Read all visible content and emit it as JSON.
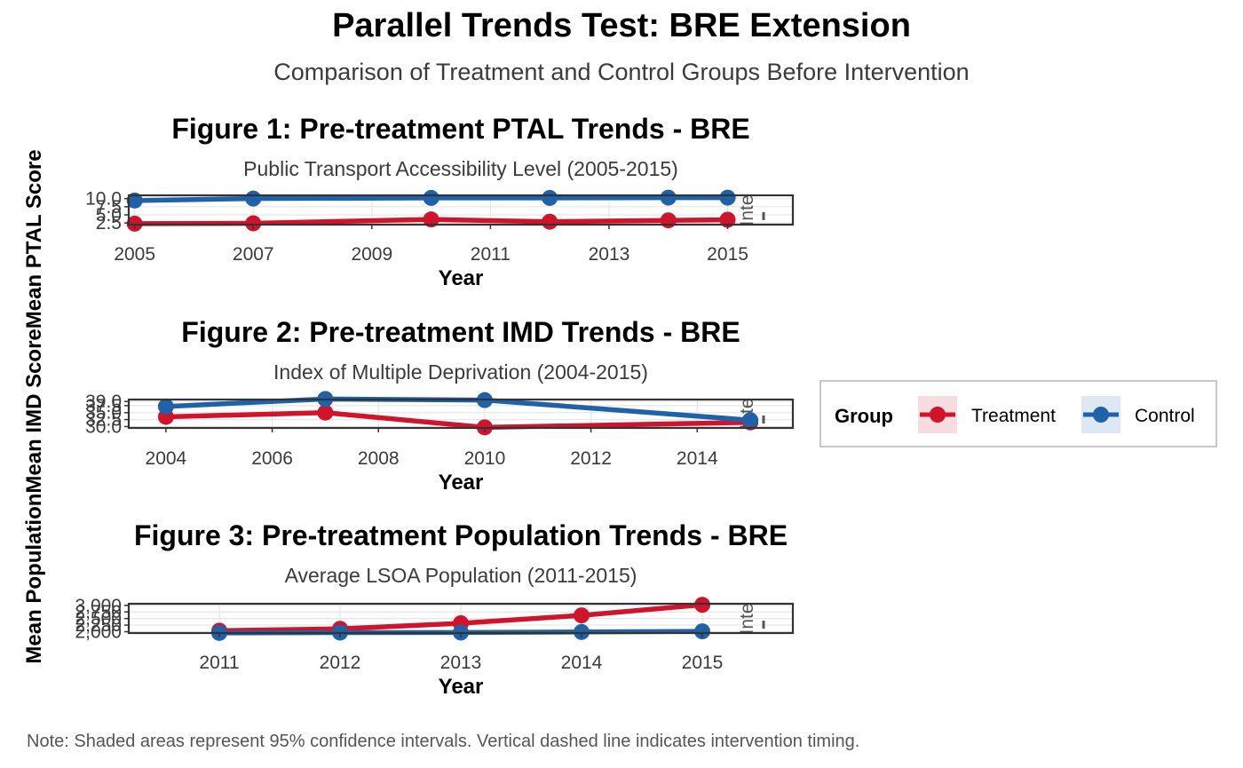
{
  "title": "Parallel Trends Test: BRE Extension",
  "subtitle": "Comparison of Treatment and Control Groups Before Intervention",
  "caption": "Note: Shaded areas represent 95% confidence intervals. Vertical dashed line indicates intervention timing.",
  "y_axis_label": "Mean PopulationMean IMD ScoreMean PTAL Score",
  "legend": {
    "title": "Group",
    "entries": [
      {
        "label": "Treatment",
        "color": "#D0142B"
      },
      {
        "label": "Control",
        "color": "#1F62A8"
      }
    ]
  },
  "chart_data": [
    {
      "type": "line",
      "title": "Figure 1: Pre-treatment PTAL Trends - BRE",
      "subtitle": "Public Transport Accessibility Level (2005-2015)",
      "xlabel": "Year",
      "ylabel": "Mean PTAL Score",
      "intervention_label": "Inte",
      "x": [
        2005,
        2007,
        2010,
        2012,
        2014,
        2015
      ],
      "xlim": [
        2004.9,
        2016.1
      ],
      "xticks": [
        2005,
        2007,
        2009,
        2011,
        2013,
        2015
      ],
      "xtick_labels": [
        "2005",
        "2007",
        "2009",
        "2011",
        "2013",
        "2015"
      ],
      "ylim": [
        2.0,
        11.0
      ],
      "yticks": [
        2.5,
        5.0,
        7.5,
        10.0
      ],
      "ytick_labels": [
        "2.5",
        "5.0",
        "7.5",
        "10.0"
      ],
      "series": [
        {
          "name": "Treatment",
          "values": [
            2.3,
            2.4,
            3.6,
            2.9,
            3.3,
            3.5
          ]
        },
        {
          "name": "Control",
          "values": [
            9.4,
            10.0,
            10.2,
            10.2,
            10.3,
            10.3
          ]
        }
      ]
    },
    {
      "type": "line",
      "title": "Figure 2: Pre-treatment IMD Trends - BRE",
      "subtitle": "Index of Multiple Deprivation (2004-2015)",
      "xlabel": "Year",
      "ylabel": "Mean IMD Score",
      "intervention_label": "Inte",
      "x": [
        2004,
        2007,
        2010,
        2015
      ],
      "xlim": [
        2003.3,
        2015.8
      ],
      "xticks": [
        2004,
        2006,
        2008,
        2010,
        2012,
        2014
      ],
      "xtick_labels": [
        "2004",
        "2006",
        "2008",
        "2010",
        "2012",
        "2014"
      ],
      "ylim": [
        29.5,
        39.7
      ],
      "yticks": [
        30.0,
        32.5,
        35.0,
        37.5,
        39.0
      ],
      "ytick_labels": [
        "30.0",
        "32.5",
        "35.0",
        "37.5",
        "39.0"
      ],
      "series": [
        {
          "name": "Treatment",
          "values": [
            33.5,
            35.0,
            29.7,
            31.5
          ]
        },
        {
          "name": "Control",
          "values": [
            37.2,
            39.9,
            39.5,
            32.3
          ]
        }
      ]
    },
    {
      "type": "line",
      "title": "Figure 3: Pre-treatment Population Trends - BRE",
      "subtitle": "Average LSOA Population (2011-2015)",
      "xlabel": "Year",
      "ylabel": "Mean Population",
      "intervention_label": "Inte",
      "x": [
        2011,
        2012,
        2013,
        2014,
        2015
      ],
      "xlim": [
        2010.25,
        2015.75
      ],
      "xticks": [
        2011,
        2012,
        2013,
        2014,
        2015
      ],
      "xtick_labels": [
        "2011",
        "2012",
        "2013",
        "2014",
        "2015"
      ],
      "ylim": [
        1950,
        3060
      ],
      "yticks": [
        2000,
        2250,
        2500,
        2750,
        3000
      ],
      "ytick_labels": [
        "2,000",
        "2,250",
        "2,500",
        "2,750",
        "3,000"
      ],
      "series": [
        {
          "name": "Treatment",
          "values": [
            2040,
            2110,
            2320,
            2620,
            3020
          ]
        },
        {
          "name": "Control",
          "values": [
            1955,
            1968,
            1970,
            1990,
            2015
          ]
        }
      ]
    }
  ]
}
